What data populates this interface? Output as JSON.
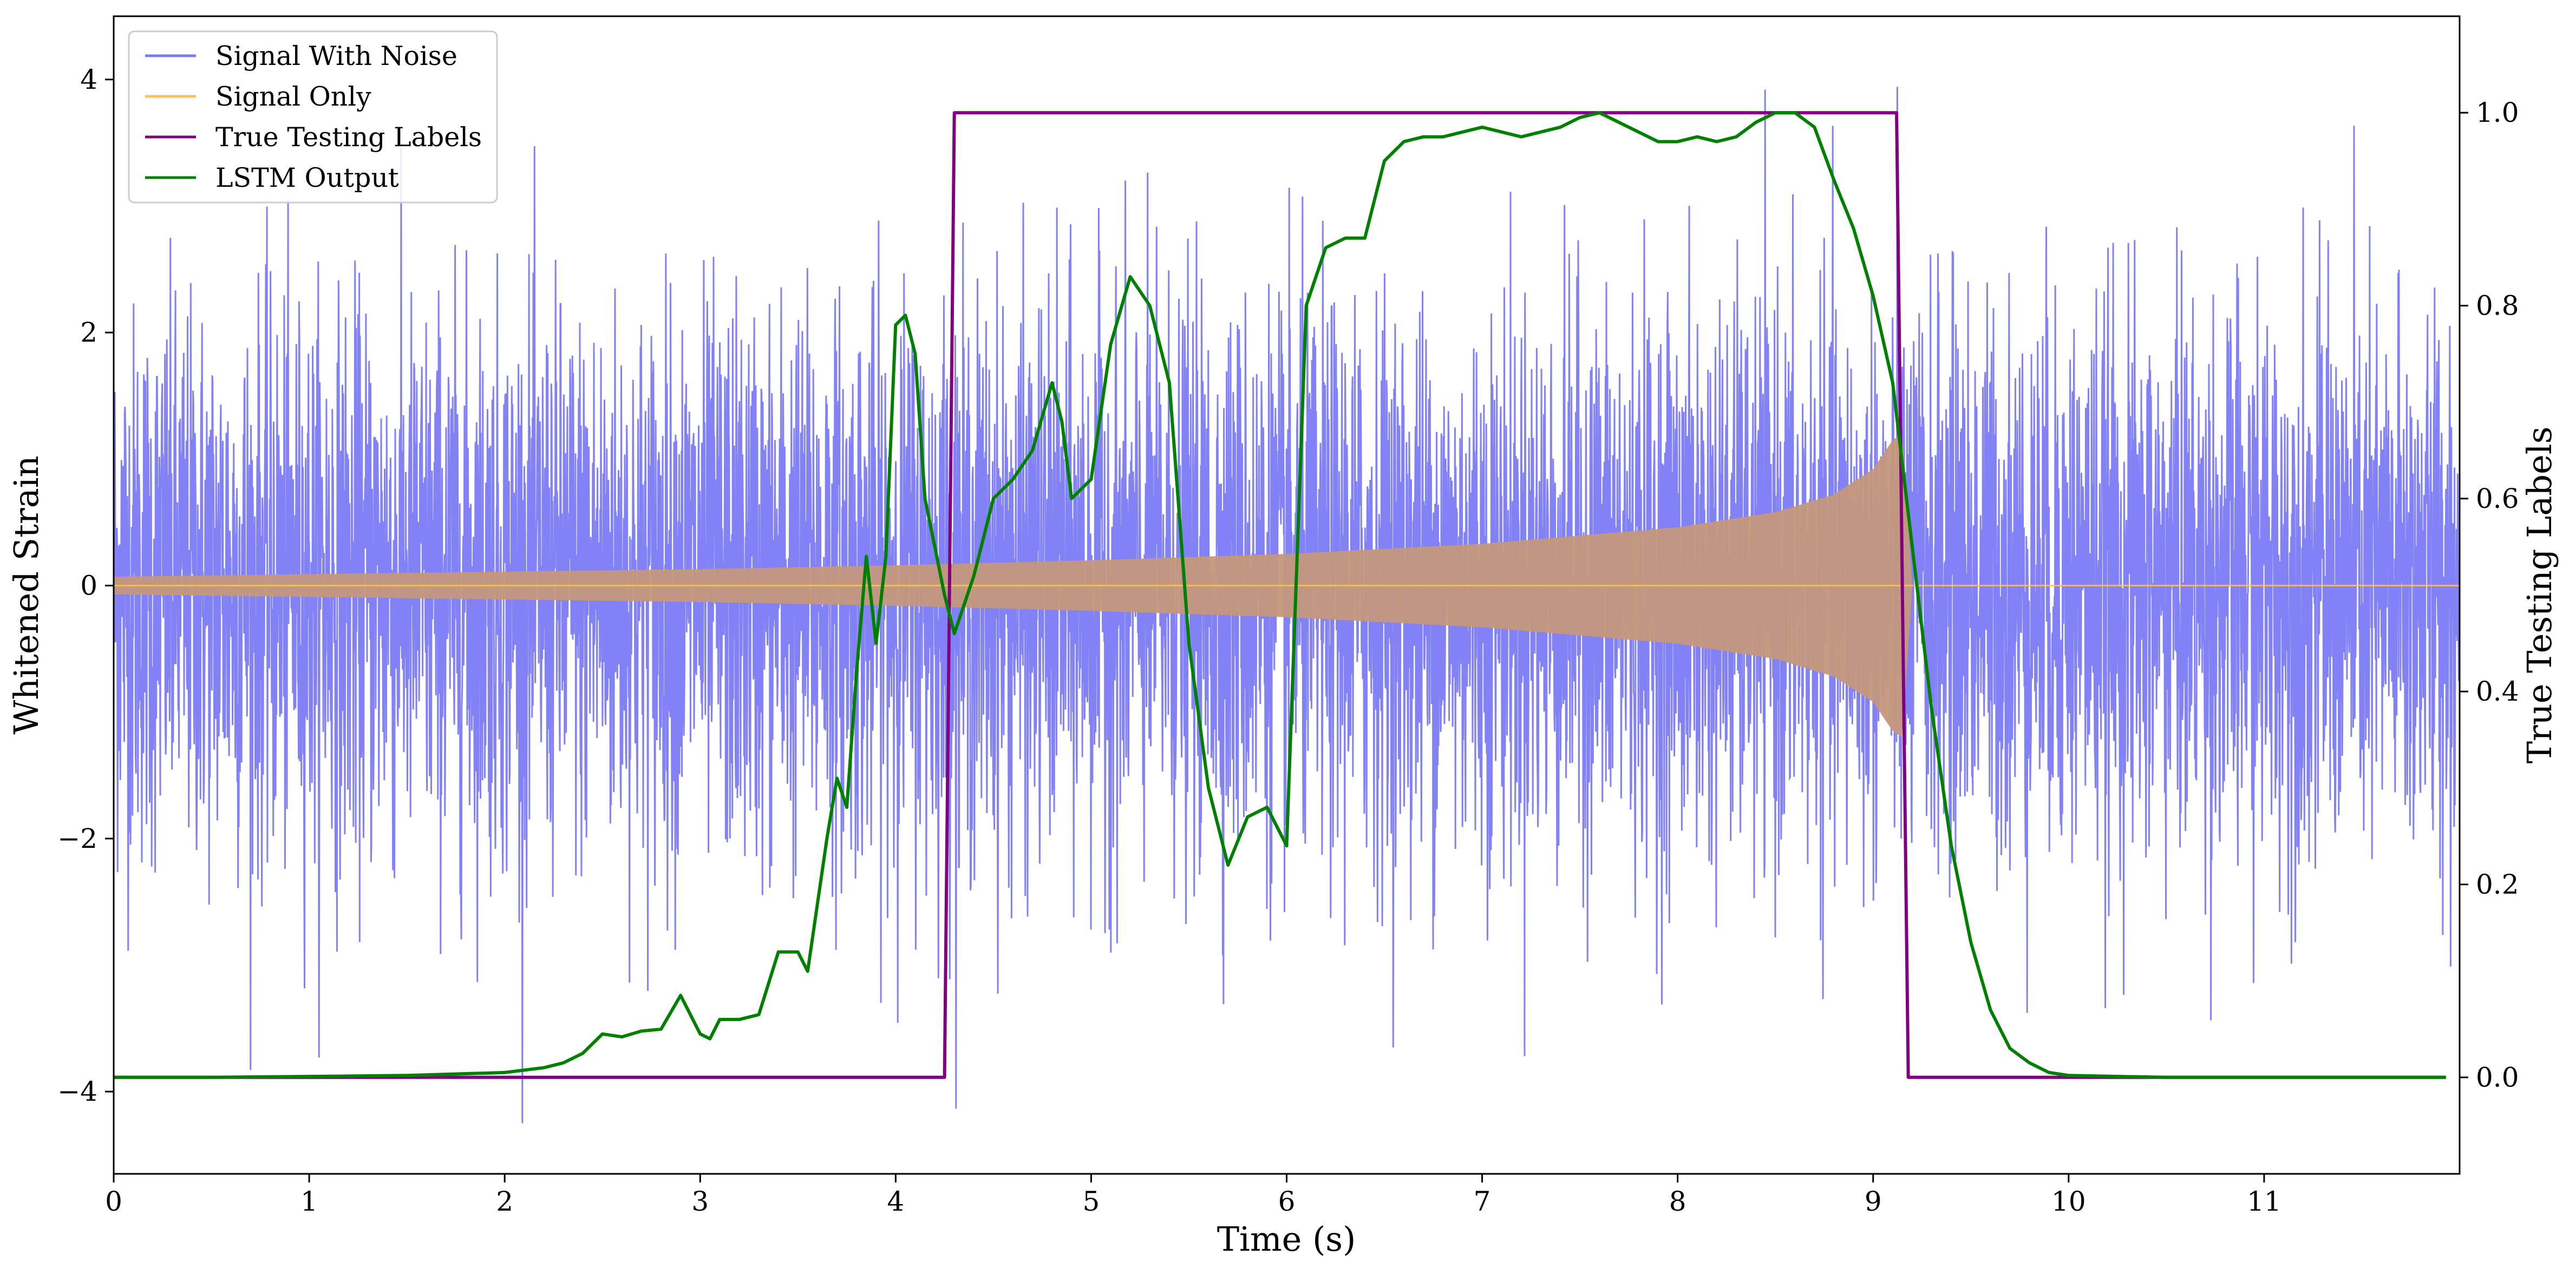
{
  "chart_data": {
    "type": "line",
    "title": "",
    "xlabel": "Time (s)",
    "ylabel": "Whitened Strain",
    "y2label": "True Testing Labels",
    "xlim": [
      0,
      12
    ],
    "ylim": [
      -4.65,
      4.5
    ],
    "y2lim": [
      -0.1,
      1.1
    ],
    "xticks": [
      "0",
      "1",
      "2",
      "3",
      "4",
      "5",
      "6",
      "7",
      "8",
      "9",
      "10",
      "11"
    ],
    "yticks": [
      "−4",
      "−2",
      "0",
      "2",
      "4"
    ],
    "y2ticks": [
      "0.0",
      "0.2",
      "0.4",
      "0.6",
      "0.8",
      "1.0"
    ],
    "grid": false,
    "legend_position": "top-left",
    "series": [
      {
        "name": "Signal With Noise",
        "axis": "left",
        "color": "#7b7bf5",
        "kind": "noise",
        "x_range": [
          0,
          12
        ],
        "typical_amplitude": 2.0,
        "peak_max": 4.05,
        "peak_min": -4.25
      },
      {
        "name": "Signal Only",
        "axis": "left",
        "color": "#ffc060",
        "kind": "chirp",
        "envelope": {
          "x": [
            0,
            1,
            2,
            3,
            4,
            5,
            6,
            7,
            8,
            8.5,
            8.8,
            9.0,
            9.1,
            9.15,
            9.2,
            12
          ],
          "y": [
            0.07,
            0.09,
            0.11,
            0.13,
            0.16,
            0.2,
            0.25,
            0.33,
            0.46,
            0.58,
            0.72,
            0.92,
            1.15,
            1.2,
            0.0,
            0.0
          ]
        }
      },
      {
        "name": "True Testing Labels",
        "axis": "right",
        "color": "#800080",
        "x": [
          0,
          4.25,
          4.3,
          9.12,
          9.18,
          11.93
        ],
        "y": [
          0,
          0,
          1,
          1,
          0,
          0
        ]
      },
      {
        "name": "LSTM Output",
        "axis": "right",
        "color": "#008000",
        "x": [
          0,
          0.5,
          1,
          1.5,
          2,
          2.2,
          2.3,
          2.4,
          2.5,
          2.6,
          2.7,
          2.8,
          2.9,
          3.0,
          3.05,
          3.1,
          3.2,
          3.3,
          3.4,
          3.5,
          3.55,
          3.6,
          3.65,
          3.7,
          3.75,
          3.8,
          3.85,
          3.9,
          3.95,
          4.0,
          4.05,
          4.1,
          4.15,
          4.2,
          4.25,
          4.3,
          4.4,
          4.5,
          4.6,
          4.7,
          4.8,
          4.85,
          4.9,
          5.0,
          5.1,
          5.2,
          5.3,
          5.4,
          5.5,
          5.6,
          5.7,
          5.8,
          5.9,
          6.0,
          6.1,
          6.2,
          6.3,
          6.4,
          6.5,
          6.6,
          6.7,
          6.8,
          6.9,
          7.0,
          7.1,
          7.2,
          7.3,
          7.4,
          7.5,
          7.6,
          7.7,
          7.8,
          7.9,
          8.0,
          8.1,
          8.2,
          8.3,
          8.4,
          8.5,
          8.6,
          8.7,
          8.8,
          8.9,
          9.0,
          9.1,
          9.2,
          9.3,
          9.4,
          9.5,
          9.6,
          9.7,
          9.8,
          9.9,
          10.0,
          10.5,
          11.0,
          11.93
        ],
        "y": [
          0.0,
          0.0,
          0.001,
          0.002,
          0.005,
          0.01,
          0.015,
          0.025,
          0.045,
          0.042,
          0.048,
          0.05,
          0.085,
          0.045,
          0.04,
          0.06,
          0.06,
          0.065,
          0.13,
          0.13,
          0.11,
          0.18,
          0.25,
          0.31,
          0.28,
          0.42,
          0.54,
          0.45,
          0.54,
          0.78,
          0.79,
          0.75,
          0.6,
          0.55,
          0.5,
          0.46,
          0.52,
          0.6,
          0.62,
          0.65,
          0.72,
          0.68,
          0.6,
          0.62,
          0.76,
          0.83,
          0.8,
          0.72,
          0.45,
          0.3,
          0.22,
          0.27,
          0.28,
          0.24,
          0.8,
          0.86,
          0.87,
          0.87,
          0.95,
          0.97,
          0.975,
          0.975,
          0.98,
          0.985,
          0.98,
          0.975,
          0.98,
          0.985,
          0.995,
          1.0,
          0.99,
          0.98,
          0.97,
          0.97,
          0.975,
          0.97,
          0.975,
          0.99,
          1.0,
          1.0,
          0.985,
          0.93,
          0.88,
          0.81,
          0.72,
          0.55,
          0.38,
          0.24,
          0.14,
          0.07,
          0.03,
          0.015,
          0.005,
          0.002,
          0.0,
          0.0,
          0.0
        ]
      }
    ]
  }
}
